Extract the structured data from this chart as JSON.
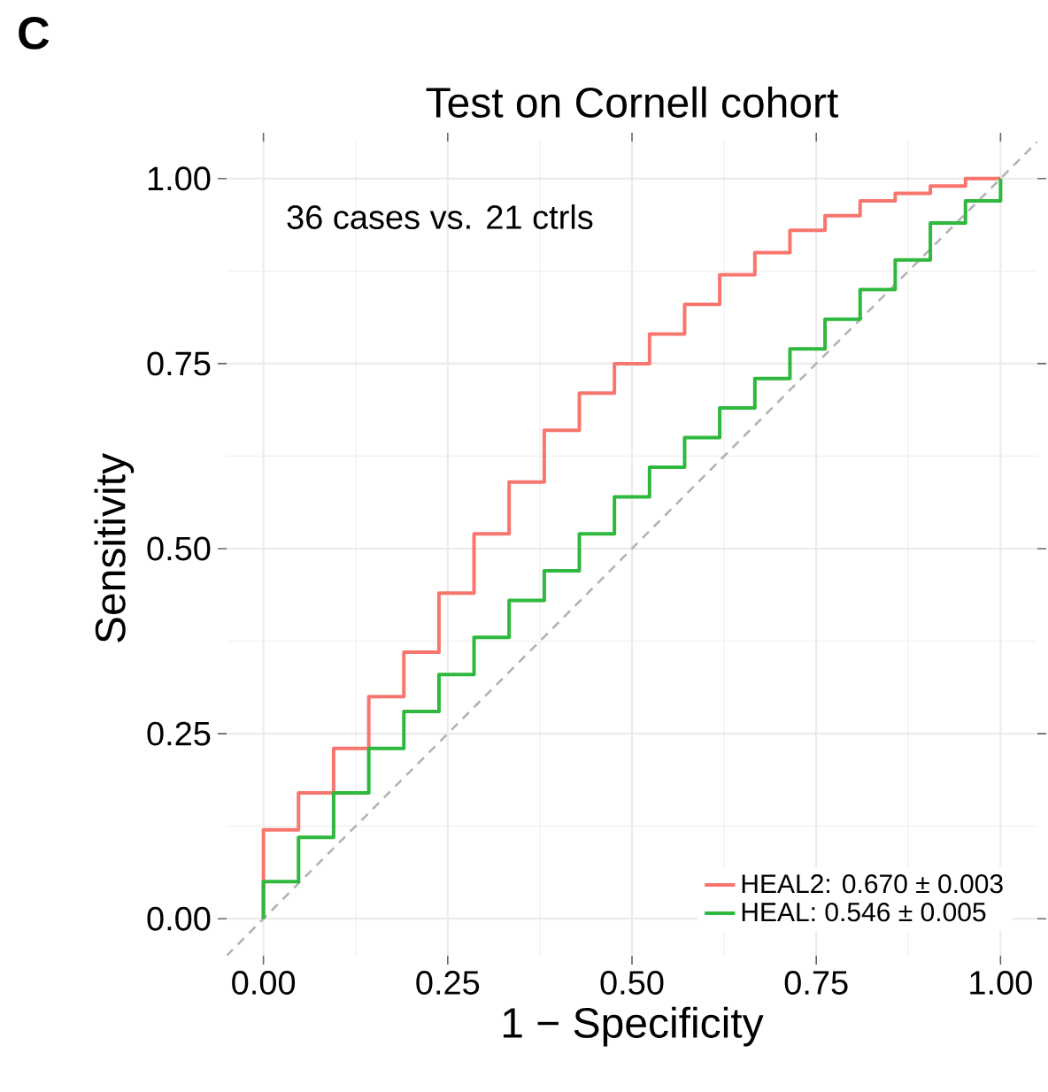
{
  "chart_data": {
    "type": "step",
    "title": "Test on Cornell cohort",
    "xlabel": "1 − Specificity",
    "ylabel": "Sensitivity",
    "annotations": [
      "C",
      "36 cases vs. 21 ctrls"
    ],
    "xlim": [
      -0.05,
      1.05
    ],
    "ylim": [
      -0.05,
      1.05
    ],
    "xticks": [
      {
        "value": 0,
        "label": "0.00"
      },
      {
        "value": 0.25,
        "label": "0.25"
      },
      {
        "value": 0.5,
        "label": "0.50"
      },
      {
        "value": 0.75,
        "label": "0.75"
      },
      {
        "value": 1,
        "label": "1.00"
      }
    ],
    "yticks": [
      {
        "value": 0,
        "label": "0.00"
      },
      {
        "value": 0.25,
        "label": "0.25"
      },
      {
        "value": 0.5,
        "label": "0.50"
      },
      {
        "value": 0.75,
        "label": "0.75"
      },
      {
        "value": 1,
        "label": "1.00"
      }
    ],
    "grid": true,
    "legend": "bottom right",
    "series": [
      {
        "type": "line",
        "line_style": "dashed",
        "color": "#b3b3b3",
        "x": [
          -0.05,
          1.05
        ],
        "values": [
          -0.05,
          1.05
        ]
      },
      {
        "name": "HEAL2: 0.670 ± 0.003",
        "color": "#f8766d",
        "x": [
          0,
          0,
          0.0476,
          0.0952,
          0.1429,
          0.1905,
          0.2381,
          0.2857,
          0.3333,
          0.381,
          0.4286,
          0.4762,
          0.5238,
          0.5714,
          0.619,
          0.6667,
          0.7143,
          0.7619,
          0.8095,
          0.8571,
          0.9048,
          0.9524,
          1
        ],
        "values": [
          0,
          0.12,
          0.17,
          0.23,
          0.3,
          0.36,
          0.44,
          0.52,
          0.59,
          0.66,
          0.71,
          0.75,
          0.79,
          0.83,
          0.87,
          0.9,
          0.93,
          0.95,
          0.97,
          0.98,
          0.99,
          1.0,
          1.0
        ]
      },
      {
        "name": "HEAL: 0.546 ± 0.005",
        "color": "#2eb83d",
        "x": [
          0,
          0,
          0.0476,
          0.0952,
          0.1429,
          0.1905,
          0.2381,
          0.2857,
          0.3333,
          0.381,
          0.4286,
          0.4762,
          0.5238,
          0.5714,
          0.619,
          0.6667,
          0.7143,
          0.7619,
          0.8095,
          0.8571,
          0.9048,
          0.9524,
          1
        ],
        "values": [
          0,
          0.05,
          0.11,
          0.17,
          0.23,
          0.28,
          0.33,
          0.38,
          0.43,
          0.47,
          0.52,
          0.57,
          0.61,
          0.65,
          0.69,
          0.73,
          0.77,
          0.81,
          0.85,
          0.89,
          0.94,
          0.97,
          1.0
        ]
      }
    ]
  }
}
